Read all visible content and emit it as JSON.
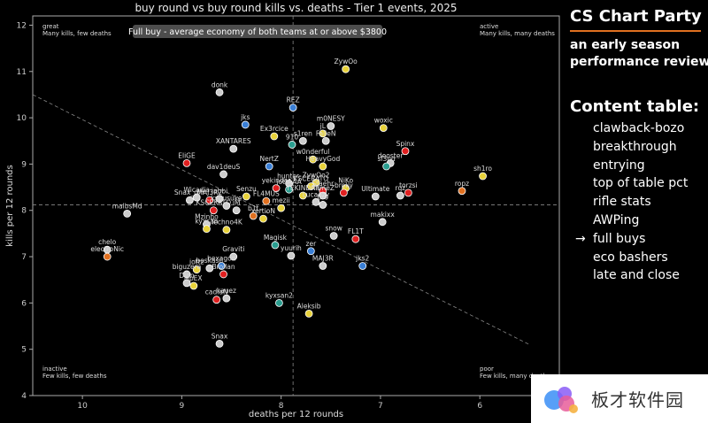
{
  "chart_data": {
    "type": "scatter",
    "title": "buy round vs buy round kills vs. deaths - Tier 1 events, 2025",
    "xlabel": "deaths per 12 rounds",
    "ylabel": "kills per 12 rounds",
    "xlim": [
      10.5,
      5.2
    ],
    "ylim": [
      4,
      12.2
    ],
    "x_reversed": true,
    "x_ticks": [
      10,
      9,
      8,
      7,
      6
    ],
    "y_ticks": [
      4,
      5,
      6,
      7,
      8,
      9,
      10,
      11,
      12
    ],
    "mean_x": 7.88,
    "mean_y": 8.12,
    "trendline": [
      [
        10.5,
        10.5
      ],
      [
        5.5,
        5.1
      ]
    ],
    "banner": "Full buy - average economy of both teams at or above $3800",
    "corners": {
      "top_left": [
        "great",
        "Many kills, few deaths"
      ],
      "top_right": [
        "active",
        "Many kills, many deaths"
      ],
      "bottom_left": [
        "inactive",
        "Few kills, few deaths"
      ],
      "bottom_right": [
        "poor",
        "Few kills, many deaths"
      ]
    },
    "points": [
      {
        "label": "ZywOo",
        "x": 7.35,
        "y": 11.05,
        "color": "#e8d23a"
      },
      {
        "label": "donk",
        "x": 8.62,
        "y": 10.55,
        "color": "#cccccc"
      },
      {
        "label": "REZ",
        "x": 7.88,
        "y": 10.22,
        "color": "#3a7fd5"
      },
      {
        "label": "m0NESY",
        "x": 7.5,
        "y": 9.82,
        "color": "#cccccc"
      },
      {
        "label": "woxic",
        "x": 6.97,
        "y": 9.78,
        "color": "#e8d23a"
      },
      {
        "label": "jL",
        "x": 7.58,
        "y": 9.66,
        "color": "#e8d23a"
      },
      {
        "label": "XANTARES",
        "x": 8.48,
        "y": 9.33,
        "color": "#cccccc"
      },
      {
        "label": "FalleN",
        "x": 7.55,
        "y": 9.5,
        "color": "#cccccc"
      },
      {
        "label": "Ex3rcice",
        "x": 8.07,
        "y": 9.6,
        "color": "#e8d23a"
      },
      {
        "label": "910",
        "x": 7.89,
        "y": 9.42,
        "color": "#2a9d8f"
      },
      {
        "label": "s1ren",
        "x": 7.78,
        "y": 9.5,
        "color": "#cccccc"
      },
      {
        "label": "jks",
        "x": 8.36,
        "y": 9.85,
        "color": "#3a7fd5"
      },
      {
        "label": "Spinx",
        "x": 6.75,
        "y": 9.28,
        "color": "#e02020"
      },
      {
        "label": "w0nderful",
        "x": 7.68,
        "y": 9.1,
        "color": "#e8d23a"
      },
      {
        "label": "HeavyGod",
        "x": 7.58,
        "y": 8.95,
        "color": "#e8d23a"
      },
      {
        "label": "deoster",
        "x": 6.9,
        "y": 9.02,
        "color": "#cccccc"
      },
      {
        "label": "sl3nd",
        "x": 6.94,
        "y": 8.95,
        "color": "#2a9d8f"
      },
      {
        "label": "EliGE",
        "x": 8.95,
        "y": 9.02,
        "color": "#e02020"
      },
      {
        "label": "NertZ",
        "x": 8.12,
        "y": 8.95,
        "color": "#3a7fd5"
      },
      {
        "label": "dav1deuS",
        "x": 8.58,
        "y": 8.78,
        "color": "#cccccc"
      },
      {
        "label": "sh1ro",
        "x": 5.97,
        "y": 8.74,
        "color": "#e8d23a"
      },
      {
        "label": "hunter-",
        "x": 7.92,
        "y": 8.58,
        "color": "#cccccc"
      },
      {
        "label": "NiKo",
        "x": 7.35,
        "y": 8.48,
        "color": "#e8d23a"
      },
      {
        "label": "ZywOo2",
        "x": 7.65,
        "y": 8.6,
        "color": "#e8d23a"
      },
      {
        "label": "KSCERATO",
        "x": 7.7,
        "y": 8.52,
        "color": "#e8d23a"
      },
      {
        "label": "yekindar",
        "x": 8.05,
        "y": 8.48,
        "color": "#e02020"
      },
      {
        "label": "jottAAA",
        "x": 7.92,
        "y": 8.45,
        "color": "#2a9d8f"
      },
      {
        "label": "Staehr",
        "x": 7.58,
        "y": 8.42,
        "color": "#e02020"
      },
      {
        "label": "broky",
        "x": 7.37,
        "y": 8.38,
        "color": "#e02020"
      },
      {
        "label": "YEKINDAR",
        "x": 7.78,
        "y": 8.32,
        "color": "#e8d23a"
      },
      {
        "label": "flameZ",
        "x": 7.58,
        "y": 8.32,
        "color": "#cccccc"
      },
      {
        "label": "Ultimate",
        "x": 7.05,
        "y": 8.3,
        "color": "#cccccc"
      },
      {
        "label": "torzsi",
        "x": 6.72,
        "y": 8.38,
        "color": "#e02020"
      },
      {
        "label": "rqz",
        "x": 6.8,
        "y": 8.32,
        "color": "#cccccc"
      },
      {
        "label": "ropz",
        "x": 6.18,
        "y": 8.42,
        "color": "#e07020"
      },
      {
        "label": "Wicadia",
        "x": 8.85,
        "y": 8.28,
        "color": "#cccccc"
      },
      {
        "label": "jabbi",
        "x": 8.62,
        "y": 8.25,
        "color": "#cccccc"
      },
      {
        "label": "Senzu",
        "x": 8.35,
        "y": 8.3,
        "color": "#e8d23a"
      },
      {
        "label": "FL4MUS",
        "x": 8.15,
        "y": 8.2,
        "color": "#e07020"
      },
      {
        "label": "mezii",
        "x": 8.0,
        "y": 8.05,
        "color": "#e8d23a"
      },
      {
        "label": "Lucaozy",
        "x": 7.65,
        "y": 8.18,
        "color": "#cccccc"
      },
      {
        "label": "br0",
        "x": 7.58,
        "y": 8.12,
        "color": "#cccccc"
      },
      {
        "label": "malbsMd",
        "x": 9.55,
        "y": 7.93,
        "color": "#cccccc"
      },
      {
        "label": "Snax_ghr",
        "x": 8.92,
        "y": 8.22,
        "color": "#cccccc"
      },
      {
        "label": "MAJ3R2",
        "x": 8.72,
        "y": 8.22,
        "color": "#e02020"
      },
      {
        "label": "kyousuke",
        "x": 8.55,
        "y": 8.1,
        "color": "#cccccc"
      },
      {
        "label": "KSCERATO",
        "x": 8.68,
        "y": 8.0,
        "color": "#e02020"
      },
      {
        "label": "iM",
        "x": 8.45,
        "y": 8.0,
        "color": "#cccccc"
      },
      {
        "label": "b1t",
        "x": 8.28,
        "y": 7.88,
        "color": "#e07020"
      },
      {
        "label": "xertioN",
        "x": 8.18,
        "y": 7.82,
        "color": "#e8d23a"
      },
      {
        "label": "Mzinho",
        "x": 8.75,
        "y": 7.7,
        "color": "#cccccc"
      },
      {
        "label": "kyxsan",
        "x": 8.75,
        "y": 7.6,
        "color": "#e8d23a"
      },
      {
        "label": "Techno4K",
        "x": 8.55,
        "y": 7.58,
        "color": "#e8d23a"
      },
      {
        "label": "makixx",
        "x": 6.98,
        "y": 7.75,
        "color": "#cccccc"
      },
      {
        "label": "snow",
        "x": 7.47,
        "y": 7.45,
        "color": "#cccccc"
      },
      {
        "label": "FL1T",
        "x": 7.25,
        "y": 7.38,
        "color": "#e02020"
      },
      {
        "label": "Magisk",
        "x": 8.06,
        "y": 7.25,
        "color": "#2a9d8f"
      },
      {
        "label": "chelo",
        "x": 9.75,
        "y": 7.15,
        "color": "#cccccc"
      },
      {
        "label": "electroNic",
        "x": 9.75,
        "y": 7.0,
        "color": "#e07020"
      },
      {
        "label": "Graviti",
        "x": 8.48,
        "y": 7.0,
        "color": "#cccccc"
      },
      {
        "label": "zer",
        "x": 7.7,
        "y": 7.12,
        "color": "#3a7fd5"
      },
      {
        "label": "yuurih",
        "x": 7.9,
        "y": 7.02,
        "color": "#cccccc"
      },
      {
        "label": "MAJ3R",
        "x": 7.58,
        "y": 6.8,
        "color": "#cccccc"
      },
      {
        "label": "jks2",
        "x": 7.18,
        "y": 6.8,
        "color": "#3a7fd5"
      },
      {
        "label": "hexagon",
        "x": 8.6,
        "y": 6.8,
        "color": "#3a7fd5"
      },
      {
        "label": "boskasn",
        "x": 8.72,
        "y": 6.75,
        "color": "#cccccc"
      },
      {
        "label": "jottz",
        "x": 8.85,
        "y": 6.72,
        "color": "#e8d23a"
      },
      {
        "label": "biguzera",
        "x": 8.95,
        "y": 6.62,
        "color": "#cccccc"
      },
      {
        "label": "Brollan",
        "x": 8.58,
        "y": 6.62,
        "color": "#e02020"
      },
      {
        "label": "Djon",
        "x": 8.95,
        "y": 6.43,
        "color": "#cccccc"
      },
      {
        "label": "apEX",
        "x": 8.88,
        "y": 6.37,
        "color": "#e8d23a"
      },
      {
        "label": "kauez",
        "x": 8.55,
        "y": 6.1,
        "color": "#cccccc"
      },
      {
        "label": "cadiaN",
        "x": 8.65,
        "y": 6.07,
        "color": "#e02020"
      },
      {
        "label": "kyxsan2",
        "x": 8.02,
        "y": 6.0,
        "color": "#2a9d8f"
      },
      {
        "label": "Aleksib",
        "x": 7.72,
        "y": 5.77,
        "color": "#e8d23a"
      },
      {
        "label": "Snax",
        "x": 8.62,
        "y": 5.12,
        "color": "#cccccc"
      }
    ]
  },
  "sidebar": {
    "title": "CS Chart Party",
    "subtitle_line1": "an early season",
    "subtitle_line2": "performance review",
    "toc_title": "Content table:",
    "arrow": "→",
    "active_index": 5,
    "items": [
      "clawback-bozo",
      "breakthrough",
      "entrying",
      "top of table pct",
      "rifle stats",
      "AWPing",
      "full buys",
      "eco bashers",
      "late and close"
    ]
  },
  "watermark": {
    "text": "板才软件园",
    "colors": [
      "#3a8ef6",
      "#8a5cf6",
      "#e85d9a",
      "#f5b342"
    ]
  }
}
